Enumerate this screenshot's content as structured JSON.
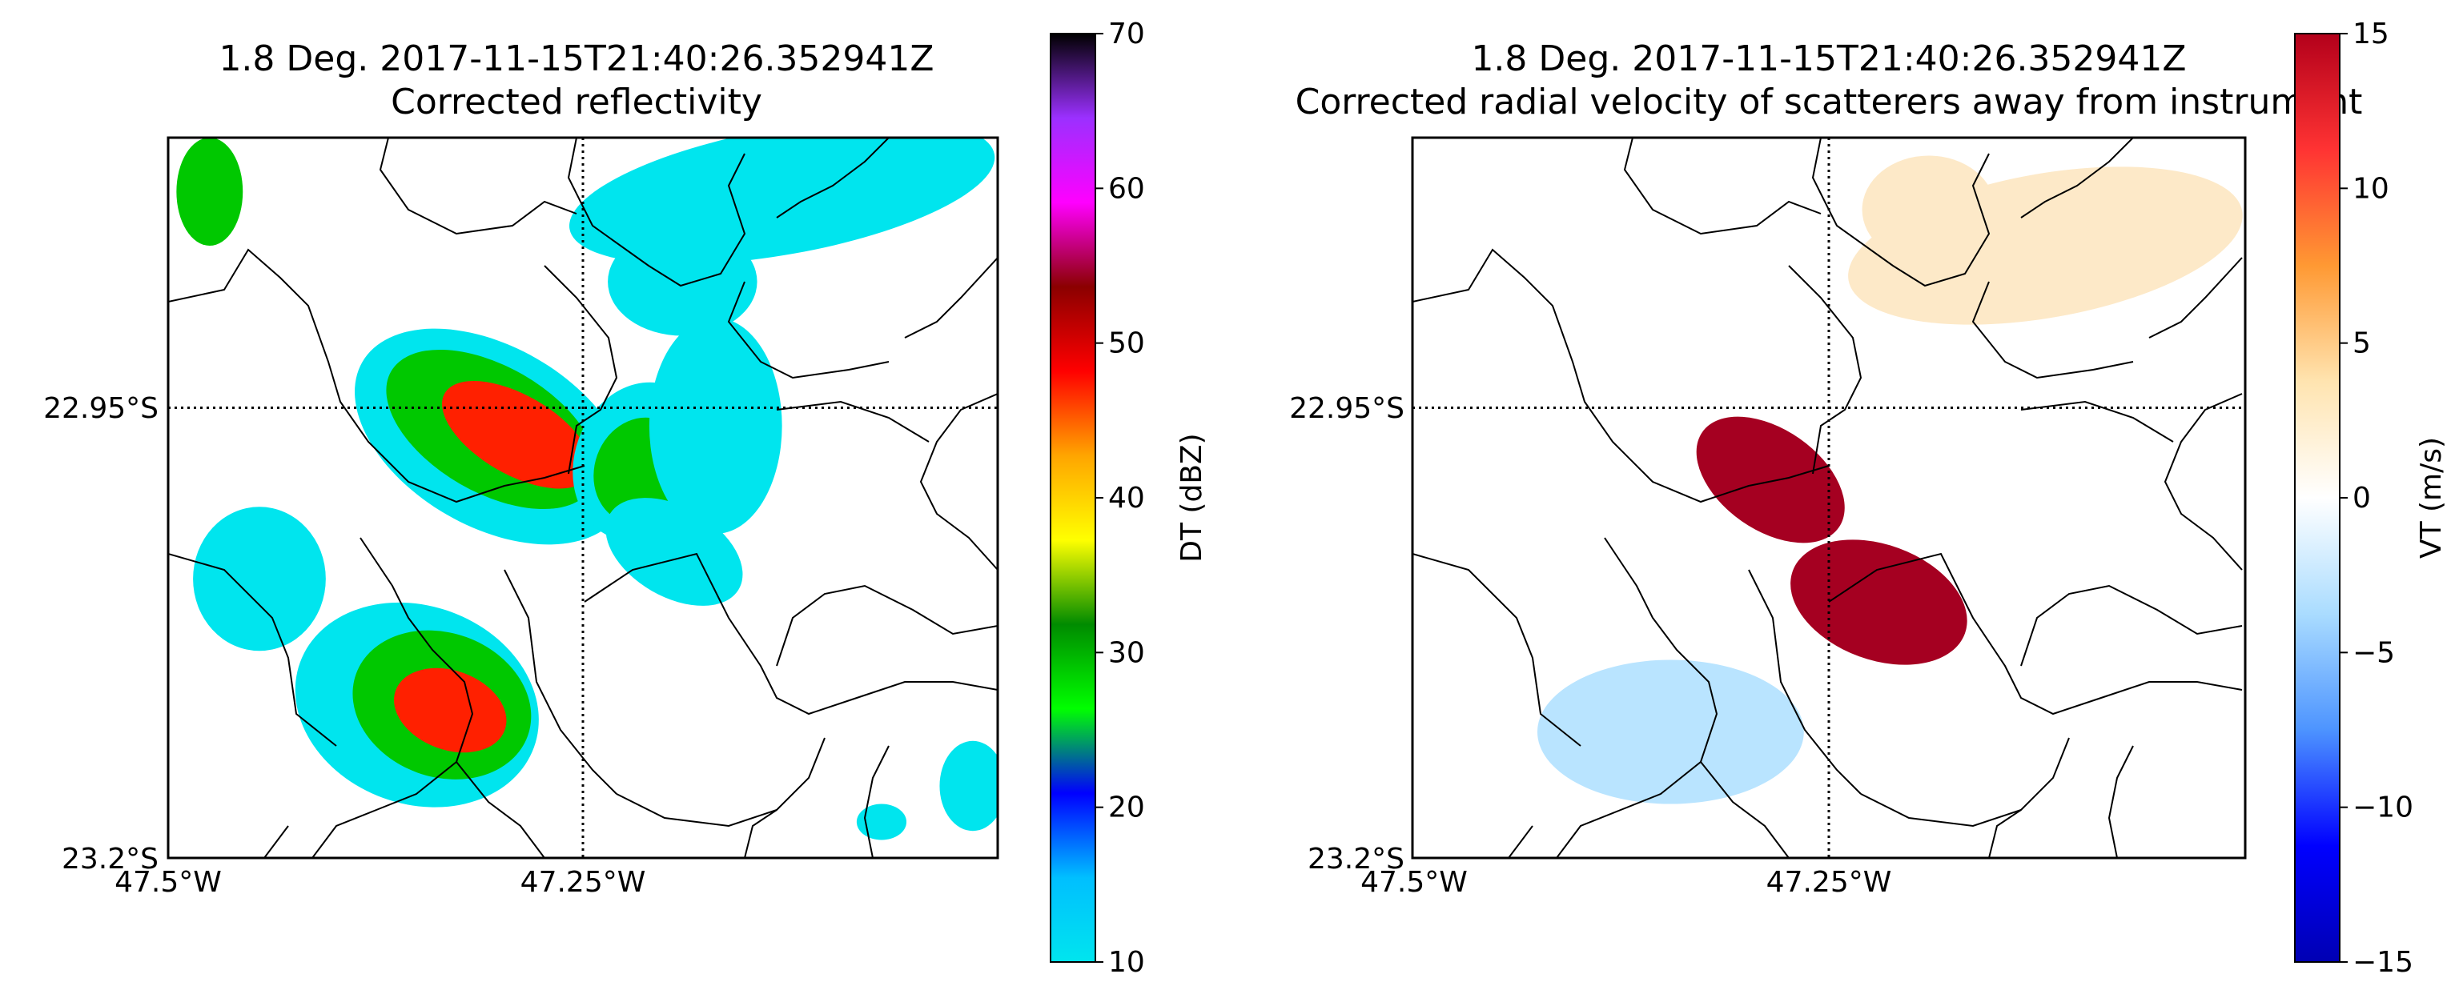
{
  "chart_data": [
    {
      "type": "heatmap",
      "title": "1.8 Deg. 2017-11-15T21:40:26.352941Z",
      "subtitle": "Corrected reflectivity",
      "x_ticks": [
        "47.5°W",
        "47.25°W"
      ],
      "y_ticks": [
        "22.95°S",
        "23.2°S"
      ],
      "xlim": [
        -47.5,
        -47.0
      ],
      "ylim": [
        -23.2,
        -22.8
      ],
      "grid": "dotted lines at 47.25°W and 22.95°S",
      "colorbar": {
        "label": "DT (dBZ)",
        "range": [
          10,
          70
        ],
        "ticks": [
          "10",
          "20",
          "30",
          "40",
          "50",
          "60",
          "70"
        ],
        "colors": [
          "#00e5ee",
          "#00bfff",
          "#0000ff",
          "#00ff00",
          "#008b00",
          "#ffff00",
          "#ffa500",
          "#ff0000",
          "#8b0000",
          "#ff00ff",
          "#9b30ff",
          "#000000"
        ]
      },
      "cells": [
        {
          "cx": -47.305,
          "cy": -22.966,
          "rx": 0.09,
          "ry": 0.05,
          "rot": 30,
          "level": "light"
        },
        {
          "cx": -47.305,
          "cy": -22.962,
          "rx": 0.07,
          "ry": 0.035,
          "rot": 30,
          "level": "moderate"
        },
        {
          "cx": -47.29,
          "cy": -22.965,
          "rx": 0.05,
          "ry": 0.022,
          "rot": 30,
          "level": "heavy"
        },
        {
          "cx": -47.215,
          "cy": -22.98,
          "rx": 0.04,
          "ry": 0.045,
          "rot": 20,
          "level": "light"
        },
        {
          "cx": -47.215,
          "cy": -22.985,
          "rx": 0.028,
          "ry": 0.03,
          "rot": 20,
          "level": "moderate"
        },
        {
          "cx": -47.195,
          "cy": -23.03,
          "rx": 0.045,
          "ry": 0.025,
          "rot": 30,
          "level": "light"
        },
        {
          "cx": -47.35,
          "cy": -23.115,
          "rx": 0.075,
          "ry": 0.055,
          "rot": 20,
          "level": "light"
        },
        {
          "cx": -47.335,
          "cy": -23.115,
          "rx": 0.055,
          "ry": 0.04,
          "rot": 20,
          "level": "moderate"
        },
        {
          "cx": -47.33,
          "cy": -23.118,
          "rx": 0.035,
          "ry": 0.022,
          "rot": 20,
          "level": "heavy"
        },
        {
          "cx": -47.19,
          "cy": -22.88,
          "rx": 0.045,
          "ry": 0.03,
          "rot": 0,
          "level": "light"
        },
        {
          "cx": -47.13,
          "cy": -22.83,
          "rx": 0.13,
          "ry": 0.035,
          "rot": -10,
          "level": "light"
        },
        {
          "cx": -47.17,
          "cy": -22.96,
          "rx": 0.04,
          "ry": 0.06,
          "rot": 0,
          "level": "light"
        },
        {
          "cx": -47.475,
          "cy": -22.83,
          "rx": 0.02,
          "ry": 0.03,
          "rot": 0,
          "level": "moderate"
        },
        {
          "cx": -47.445,
          "cy": -23.045,
          "rx": 0.04,
          "ry": 0.04,
          "rot": 0,
          "level": "light"
        },
        {
          "cx": -47.015,
          "cy": -23.16,
          "rx": 0.02,
          "ry": 0.025,
          "rot": 0,
          "level": "light"
        },
        {
          "cx": -47.07,
          "cy": -23.18,
          "rx": 0.015,
          "ry": 0.01,
          "rot": 0,
          "level": "light"
        }
      ]
    },
    {
      "type": "heatmap",
      "title": "1.8 Deg. 2017-11-15T21:40:26.352941Z",
      "subtitle": "Corrected radial velocity of scatterers away from instrument",
      "x_ticks": [
        "47.5°W",
        "47.25°W"
      ],
      "y_ticks": [
        "22.95°S",
        "23.2°S"
      ],
      "xlim": [
        -47.5,
        -47.0
      ],
      "ylim": [
        -23.2,
        -22.8
      ],
      "grid": "dotted lines at 47.25°W and 22.95°S",
      "colorbar": {
        "label": "VT (m/s)",
        "range": [
          -15,
          15
        ],
        "ticks": [
          "−15",
          "−10",
          "−5",
          "0",
          "5",
          "10",
          "15"
        ],
        "colors": [
          "#0000b3",
          "#0000ff",
          "#4d94ff",
          "#aadcff",
          "#ffffff",
          "#ffe4b0",
          "#ff9933",
          "#ff3333",
          "#b3001b"
        ]
      },
      "cells": [
        {
          "cx": -47.285,
          "cy": -22.99,
          "rx": 0.05,
          "ry": 0.028,
          "rot": 35,
          "value": 15
        },
        {
          "cx": -47.22,
          "cy": -23.058,
          "rx": 0.055,
          "ry": 0.032,
          "rot": 20,
          "value": 15
        },
        {
          "cx": -47.19,
          "cy": -22.84,
          "rx": 0.04,
          "ry": 0.03,
          "rot": 0,
          "value": 2
        },
        {
          "cx": -47.345,
          "cy": -23.13,
          "rx": 0.08,
          "ry": 0.04,
          "rot": 0,
          "value": -3
        },
        {
          "cx": -47.12,
          "cy": -22.86,
          "rx": 0.12,
          "ry": 0.04,
          "rot": -10,
          "value": 1
        }
      ]
    }
  ]
}
